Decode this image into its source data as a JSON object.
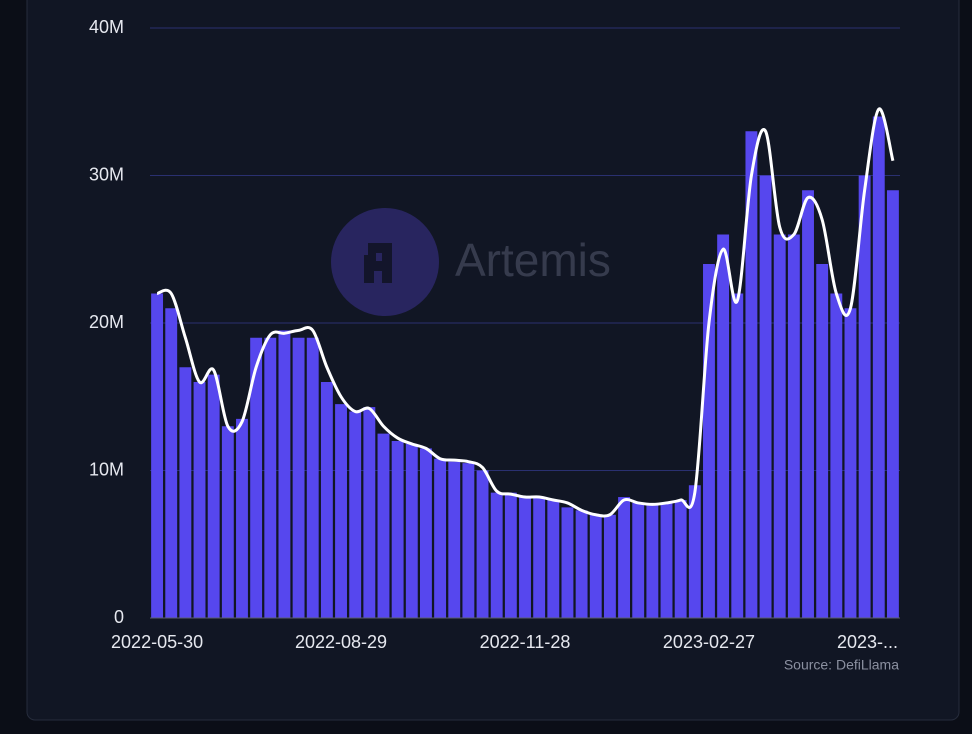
{
  "chart_data": {
    "type": "bar",
    "watermark": "Artemis",
    "source": "Source: DefiLlama",
    "categories": [
      "2022-05-30",
      null,
      null,
      null,
      null,
      null,
      null,
      null,
      null,
      null,
      null,
      null,
      null,
      "2022-08-29",
      null,
      null,
      null,
      null,
      null,
      null,
      null,
      null,
      null,
      null,
      null,
      null,
      "2022-11-28",
      null,
      null,
      null,
      null,
      null,
      null,
      null,
      null,
      null,
      null,
      null,
      null,
      "2023-02-27",
      null,
      null,
      null,
      null,
      null,
      null,
      null,
      null,
      null,
      null,
      null,
      null,
      "2023-..."
    ],
    "series": [
      {
        "color": "#5647ee",
        "values": [
          22,
          21,
          17,
          16,
          16.5,
          13,
          13.5,
          19,
          19,
          19.5,
          19,
          19,
          16,
          14.5,
          14,
          14.3,
          12.5,
          12,
          11.8,
          11.5,
          10.8,
          10.6,
          10.5,
          10,
          8.5,
          8.5,
          8.2,
          8.2,
          8,
          7.5,
          7.3,
          7,
          7,
          8.2,
          7.8,
          7.7,
          7.8,
          8,
          9,
          24,
          26,
          22,
          33,
          30,
          26,
          26,
          29,
          24,
          22,
          21,
          30,
          34,
          29
        ]
      },
      {
        "type": "line",
        "color": "#ffffff",
        "values": [
          22,
          22,
          19,
          16,
          16.8,
          13,
          13.3,
          17,
          19.2,
          19.3,
          19.5,
          19.5,
          17,
          15,
          14,
          14.2,
          13,
          12.2,
          11.8,
          11.5,
          10.8,
          10.7,
          10.6,
          10.2,
          8.6,
          8.4,
          8.2,
          8.2,
          8,
          7.8,
          7.3,
          7,
          7,
          8,
          7.8,
          7.7,
          7.8,
          8,
          8.5,
          20,
          25,
          21.5,
          30,
          33,
          26.5,
          26,
          28.5,
          27,
          22,
          21,
          29,
          34.5,
          31
        ]
      }
    ],
    "ylim": [
      0,
      40
    ],
    "yticks": [
      0,
      {
        "value": 10,
        "label": "10M"
      },
      {
        "value": 20,
        "label": "20M"
      },
      {
        "value": 30,
        "label": "30M"
      },
      {
        "value": 40,
        "label": "40M"
      }
    ],
    "grid": true
  }
}
